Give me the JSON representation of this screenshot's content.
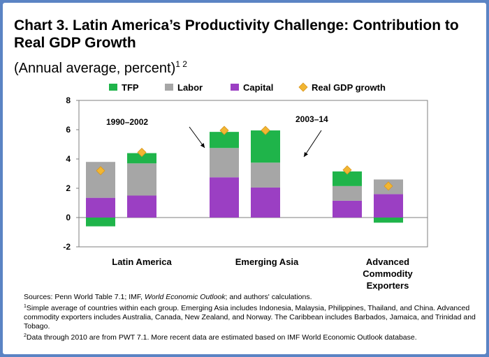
{
  "title": "Chart 3. Latin America’s Productivity Challenge: Contribution to Real GDP Growth",
  "subtitle": "(Annual average, percent)",
  "subtitle_sup": "1 2",
  "notes": {
    "sources_prefix": "Sources: Penn World Table 7.1; IMF, ",
    "sources_italic": "World Economic Outlook",
    "sources_suffix": "; and authors' calculations.",
    "note1_marker": "1",
    "note1": "Simple average of countries within each group. Emerging Asia includes Indonesia, Malaysia, Philippines, Thailand, and China. Advanced commodity exporters includes Australia, Canada, New Zealand, and Norway. The Caribbean includes Barbados, Jamaica, and Trinidad and Tobago.",
    "note2_marker": "2",
    "note2": "Data through 2010 are from PWT 7.1. More recent data are estimated based on IMF World Economic Outlook database."
  },
  "chart_data": {
    "type": "bar",
    "stacked": true,
    "ylim": [
      -2,
      8
    ],
    "yticks": [
      -2,
      0,
      2,
      4,
      6,
      8
    ],
    "groups": [
      "Latin America",
      "Emerging Asia",
      "Advanced Commodity Exporters"
    ],
    "periods": [
      "1990–2002",
      "2003–14"
    ],
    "series": [
      {
        "name": "TFP",
        "color": "#1fb44a",
        "values": [
          -0.6,
          0.7,
          1.1,
          2.2,
          1.0,
          -0.35
        ]
      },
      {
        "name": "Labor",
        "color": "#a6a6a6",
        "values": [
          2.45,
          2.2,
          2.0,
          1.7,
          1.0,
          1.0
        ]
      },
      {
        "name": "Capital",
        "color": "#9b3fc3",
        "values": [
          1.35,
          1.5,
          2.75,
          2.05,
          1.15,
          1.6
        ]
      }
    ],
    "line_series": {
      "name": "Real GDP growth",
      "color": "#f2b632",
      "marker": "diamond",
      "values": [
        3.2,
        4.45,
        5.95,
        5.95,
        3.25,
        2.15
      ]
    },
    "legend_position": "top",
    "grid": false
  }
}
